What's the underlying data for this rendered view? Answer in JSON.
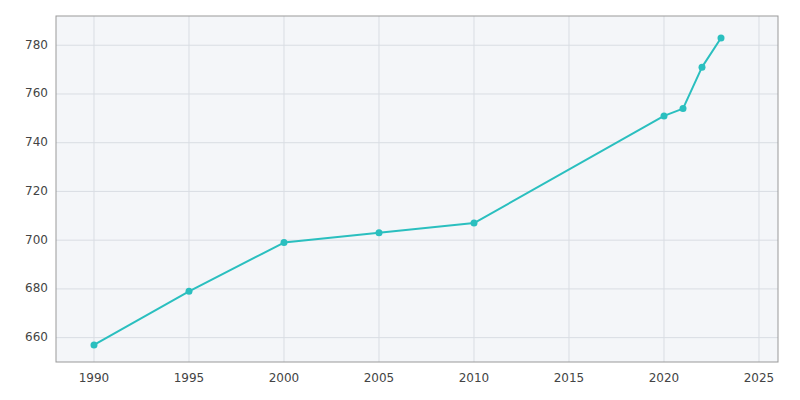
{
  "chart_data": {
    "type": "line",
    "x": [
      1990,
      1995,
      2000,
      2005,
      2010,
      2020,
      2021,
      2022,
      2023
    ],
    "values": [
      657,
      679,
      699,
      703,
      707,
      751,
      754,
      771,
      783
    ],
    "color": "#2abfbf",
    "marker": "circle",
    "xlim": [
      1988,
      2026
    ],
    "ylim": [
      650,
      792
    ],
    "xticks": [
      1990,
      1995,
      2000,
      2005,
      2010,
      2015,
      2020,
      2025
    ],
    "yticks": [
      660,
      680,
      700,
      720,
      740,
      760,
      780
    ],
    "grid": true
  }
}
